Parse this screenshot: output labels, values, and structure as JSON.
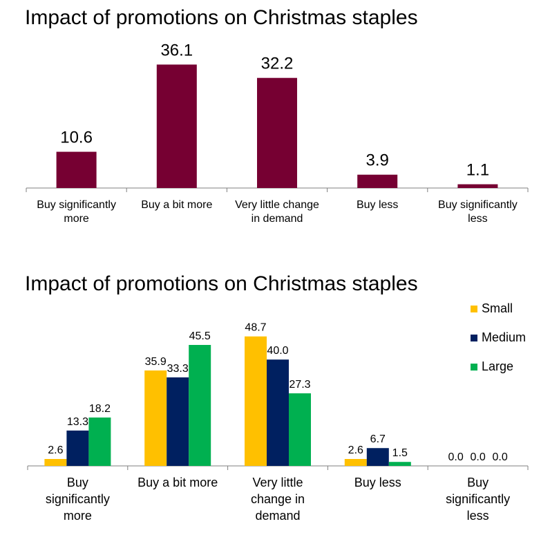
{
  "chart_data": [
    {
      "type": "bar",
      "title": "Impact of promotions on Christmas staples",
      "categories": [
        [
          "Buy significantly",
          "more"
        ],
        [
          "Buy a bit more"
        ],
        [
          "Very little change",
          "in demand"
        ],
        [
          "Buy less"
        ],
        [
          "Buy significantly",
          "less"
        ]
      ],
      "values": [
        10.6,
        36.1,
        32.2,
        3.9,
        1.1
      ],
      "value_labels": [
        "10.6",
        "36.1",
        "32.2",
        "3.9",
        "1.1"
      ],
      "ylim": [
        0,
        38
      ],
      "colors": [
        "#760032"
      ],
      "grid": false,
      "legend": "none"
    },
    {
      "type": "bar",
      "title": "Impact of promotions on Christmas staples",
      "categories": [
        [
          "Buy",
          "significantly",
          "more"
        ],
        [
          "Buy a bit more"
        ],
        [
          "Very little",
          "change in",
          "demand"
        ],
        [
          "Buy less"
        ],
        [
          "Buy",
          "significantly",
          "less"
        ]
      ],
      "series": [
        {
          "name": "Small",
          "color": "#FFC000",
          "values": [
            2.6,
            35.9,
            48.7,
            2.6,
            0.0
          ],
          "labels": [
            "2.6",
            "35.9",
            "48.7",
            "2.6",
            "0.0"
          ]
        },
        {
          "name": "Medium",
          "color": "#002060",
          "values": [
            13.3,
            33.3,
            40.0,
            6.7,
            0.0
          ],
          "labels": [
            "13.3",
            "33.3",
            "40.0",
            "6.7",
            "0.0"
          ]
        },
        {
          "name": "Large",
          "color": "#00B050",
          "values": [
            18.2,
            45.5,
            27.3,
            1.5,
            0.0
          ],
          "labels": [
            "18.2",
            "45.5",
            "27.3",
            "1.5",
            "0.0"
          ]
        }
      ],
      "ylim": [
        0,
        52
      ],
      "grid": false,
      "legend": "top-right"
    }
  ]
}
